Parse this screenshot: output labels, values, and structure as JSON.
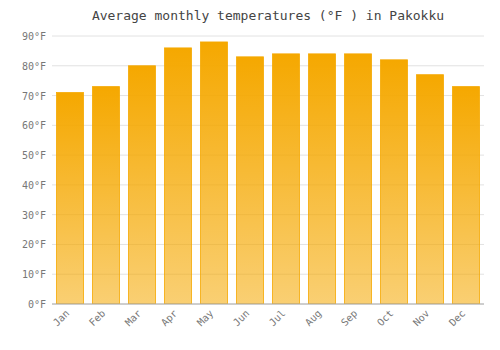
{
  "chart_data": {
    "type": "bar",
    "title": "Average monthly temperatures (°F ) in Pakokku",
    "categories": [
      "Jan",
      "Feb",
      "Mar",
      "Apr",
      "May",
      "Jun",
      "Jul",
      "Aug",
      "Sep",
      "Oct",
      "Nov",
      "Dec"
    ],
    "values": [
      71,
      73,
      80,
      86,
      88,
      83,
      84,
      84,
      84,
      82,
      77,
      73
    ],
    "color": "#F5A800",
    "ylim": [
      0,
      90
    ],
    "yticks": [
      {
        "value": 0,
        "label": "0°F"
      },
      {
        "value": 10,
        "label": "10°F"
      },
      {
        "value": 20,
        "label": "20°F"
      },
      {
        "value": 30,
        "label": "30°F"
      },
      {
        "value": 40,
        "label": "40°F"
      },
      {
        "value": 50,
        "label": "50°F"
      },
      {
        "value": 60,
        "label": "60°F"
      },
      {
        "value": 70,
        "label": "70°F"
      },
      {
        "value": 80,
        "label": "80°F"
      },
      {
        "value": 90,
        "label": "90°F"
      }
    ],
    "grid": true
  }
}
